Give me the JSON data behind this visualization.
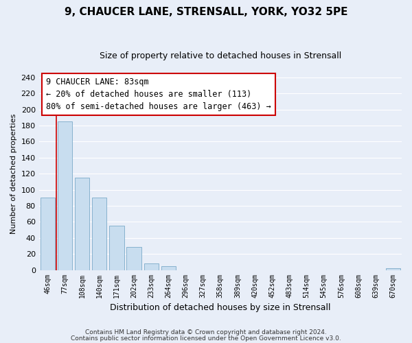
{
  "title": "9, CHAUCER LANE, STRENSALL, YORK, YO32 5PE",
  "subtitle": "Size of property relative to detached houses in Strensall",
  "xlabel": "Distribution of detached houses by size in Strensall",
  "ylabel": "Number of detached properties",
  "bar_labels": [
    "46sqm",
    "77sqm",
    "108sqm",
    "140sqm",
    "171sqm",
    "202sqm",
    "233sqm",
    "264sqm",
    "296sqm",
    "327sqm",
    "358sqm",
    "389sqm",
    "420sqm",
    "452sqm",
    "483sqm",
    "514sqm",
    "545sqm",
    "576sqm",
    "608sqm",
    "639sqm",
    "670sqm"
  ],
  "bar_values": [
    90,
    185,
    115,
    90,
    55,
    29,
    8,
    5,
    0,
    0,
    0,
    0,
    0,
    0,
    0,
    0,
    0,
    0,
    0,
    0,
    2
  ],
  "bar_color": "#c8ddef",
  "bar_edge_color": "#7aaac8",
  "vline_x": 0.5,
  "vline_color": "#cc0000",
  "ylim": [
    0,
    240
  ],
  "yticks": [
    0,
    20,
    40,
    60,
    80,
    100,
    120,
    140,
    160,
    180,
    200,
    220,
    240
  ],
  "annotation_title": "9 CHAUCER LANE: 83sqm",
  "annotation_line1": "← 20% of detached houses are smaller (113)",
  "annotation_line2": "80% of semi-detached houses are larger (463) →",
  "annotation_box_color": "#ffffff",
  "annotation_box_edge": "#cc0000",
  "footer1": "Contains HM Land Registry data © Crown copyright and database right 2024.",
  "footer2": "Contains public sector information licensed under the Open Government Licence v3.0.",
  "background_color": "#e8eef8",
  "grid_color": "#ffffff",
  "title_fontsize": 11,
  "subtitle_fontsize": 9
}
